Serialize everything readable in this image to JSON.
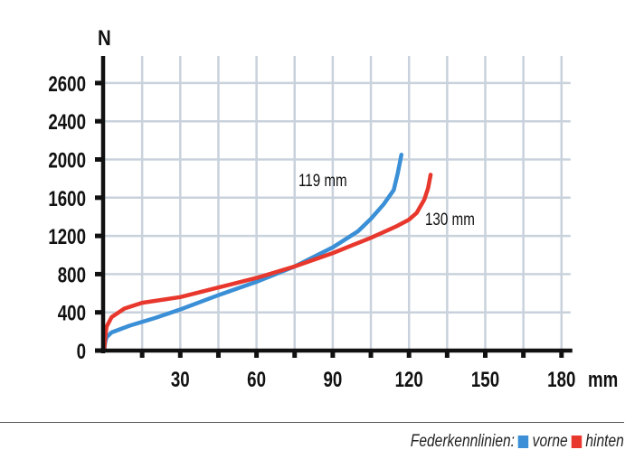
{
  "chart_data": {
    "type": "line",
    "ylabel": "N",
    "xlabel": "mm",
    "x_ticks": [
      30,
      60,
      90,
      120,
      150,
      180
    ],
    "xlim": [
      0,
      180
    ],
    "x_grid_step": 15,
    "y_ticks": [
      "0",
      "400",
      "800",
      "1200",
      "1600",
      "2000",
      "2400",
      "2600"
    ],
    "grid": true,
    "series": [
      {
        "name": "vorne",
        "color": "#3a8fd6",
        "end_label": "119  mm",
        "points": [
          [
            0,
            0
          ],
          [
            0.5,
            90
          ],
          [
            1,
            140
          ],
          [
            3,
            190
          ],
          [
            10,
            260
          ],
          [
            20,
            340
          ],
          [
            30,
            430
          ],
          [
            45,
            580
          ],
          [
            60,
            720
          ],
          [
            75,
            880
          ],
          [
            90,
            1080
          ],
          [
            100,
            1250
          ],
          [
            105,
            1380
          ],
          [
            110,
            1530
          ],
          [
            114,
            1680
          ],
          [
            115.5,
            1850
          ],
          [
            117,
            2050
          ]
        ]
      },
      {
        "name": "hinten",
        "color": "#e8372c",
        "end_label": "130  mm",
        "points": [
          [
            0,
            0
          ],
          [
            0.5,
            150
          ],
          [
            1,
            250
          ],
          [
            3,
            350
          ],
          [
            8,
            440
          ],
          [
            15,
            500
          ],
          [
            30,
            560
          ],
          [
            45,
            660
          ],
          [
            60,
            760
          ],
          [
            75,
            880
          ],
          [
            90,
            1020
          ],
          [
            105,
            1180
          ],
          [
            115,
            1300
          ],
          [
            120,
            1370
          ],
          [
            123,
            1440
          ],
          [
            126,
            1580
          ],
          [
            127.5,
            1700
          ],
          [
            128.5,
            1840
          ]
        ]
      }
    ]
  },
  "legend": {
    "title": "Federkennlinien:",
    "items": [
      "vorne",
      "hinten"
    ]
  }
}
